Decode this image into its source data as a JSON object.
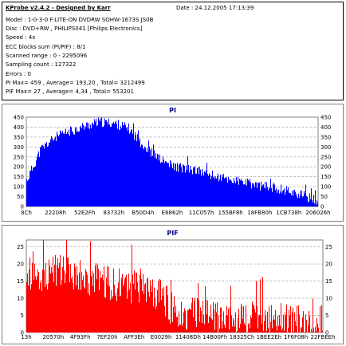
{
  "header": {
    "app_title": "KProbe v2.4.2 - Designed by Karr",
    "date": "Date : 24.12.2005 17:13:39",
    "lines": [
      "Model : 1-0-3-0 F:LITE-ON DVDRW SOHW-1673S JS0B",
      "Disc : DVD+RW , PHILIPS041 [Philips Electronics]",
      "Speed : 4x",
      "ECC blocks sum (PI/PIF) : 8/1",
      "Scanned range : 0 - 2295096",
      "Sampling count : 127322",
      "Errors : 0",
      "PI Max= 459 , Average= 193,20 , Total= 3212499",
      "PIF Max= 27 , Average= 4,34 , Total= 553201"
    ]
  },
  "chart_data": [
    {
      "type": "bar",
      "title": "PI",
      "color": "#0000ff",
      "ylim": [
        0,
        450
      ],
      "yticks": [
        0,
        50,
        100,
        150,
        200,
        250,
        300,
        350,
        400,
        450
      ],
      "xticks": [
        "8Ch",
        "22208h",
        "52E2Fh",
        "83732h",
        "B50D4h",
        "E6862h",
        "11C057h",
        "155BF8h",
        "18FB80h",
        "1CB738h",
        "206026h"
      ],
      "grid": true,
      "profile_x": [
        0.0,
        0.05,
        0.1,
        0.15,
        0.2,
        0.25,
        0.3,
        0.35,
        0.4,
        0.45,
        0.5,
        0.55,
        0.6,
        0.65,
        0.7,
        0.75,
        0.8,
        0.85,
        0.9,
        0.95,
        1.0
      ],
      "profile_y": [
        130,
        290,
        350,
        380,
        405,
        425,
        420,
        395,
        310,
        245,
        205,
        190,
        175,
        150,
        135,
        120,
        105,
        95,
        80,
        55,
        30
      ],
      "noise": 25
    },
    {
      "type": "bar",
      "title": "PIF",
      "color": "#ff0000",
      "ylim": [
        0,
        27
      ],
      "yticks": [
        0,
        5,
        10,
        15,
        20,
        25
      ],
      "xticks": [
        "13h",
        "20570h",
        "4F93Fh",
        "7EF20h",
        "AFF3Eh",
        "E0029h",
        "11408Dh",
        "14B00Fh",
        "18325Ch",
        "1BEE2Eh",
        "1F6F08h",
        "22FBEEh"
      ],
      "grid": true,
      "profile_x": [
        0.0,
        0.1,
        0.2,
        0.3,
        0.4,
        0.45,
        0.5,
        0.6,
        0.7,
        0.8,
        0.9,
        1.0
      ],
      "profile_y": [
        16,
        18,
        16,
        14,
        13,
        11,
        6,
        5,
        4.5,
        4,
        3.5,
        3
      ],
      "noise": 5
    }
  ]
}
